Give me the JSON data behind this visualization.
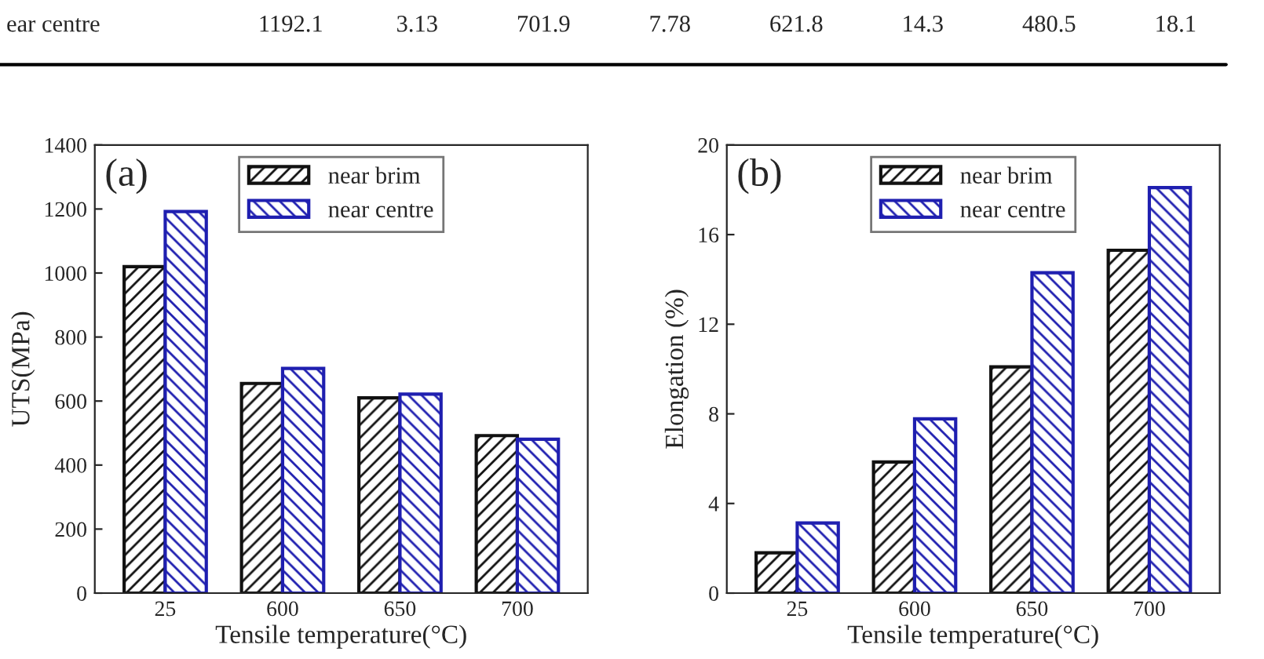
{
  "chart_data": [
    {
      "type": "other",
      "annotations": [
        "ear centre",
        "1192.1",
        "3.13",
        "701.9",
        "7.78",
        "621.8",
        "14.3",
        "480.5",
        "18.1"
      ]
    },
    {
      "type": "bar",
      "annotations": [
        "(a)"
      ],
      "xlabel": "Tensile temperature(°C)",
      "ylabel": "UTS(MPa)",
      "categories": [
        "25",
        "600",
        "650",
        "700"
      ],
      "series": [
        {
          "name": "near brim",
          "color": "#111111",
          "values": [
            1020,
            655,
            610,
            492
          ]
        },
        {
          "name": "near centre",
          "color": "#1f1fb0",
          "values": [
            1192.1,
            701.9,
            621.8,
            480.5
          ]
        }
      ],
      "ylim": [
        0,
        1400
      ],
      "yticks": [
        0,
        200,
        400,
        600,
        800,
        1000,
        1200,
        1400
      ],
      "legend": "top"
    },
    {
      "type": "bar",
      "annotations": [
        "(b)"
      ],
      "xlabel": "Tensile temperature(°C)",
      "ylabel": "Elongation (%)",
      "categories": [
        "25",
        "600",
        "650",
        "700"
      ],
      "series": [
        {
          "name": "near brim",
          "color": "#111111",
          "values": [
            1.8,
            5.85,
            10.1,
            15.3
          ]
        },
        {
          "name": "near centre",
          "color": "#1f1fb0",
          "values": [
            3.13,
            7.78,
            14.3,
            18.1
          ]
        }
      ],
      "ylim": [
        0,
        20
      ],
      "yticks": [
        0,
        4,
        8,
        12,
        16,
        20
      ],
      "legend": "top"
    }
  ]
}
